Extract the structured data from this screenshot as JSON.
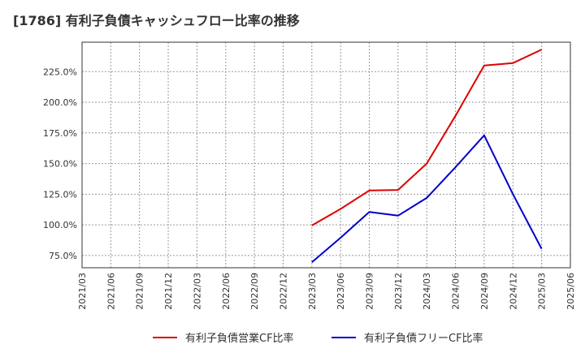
{
  "chart_data": {
    "type": "line",
    "title": "[1786]  有利子負債キャッシュフロー比率の推移",
    "xlabel": "",
    "ylabel": "",
    "x": [
      "2021/03",
      "2021/06",
      "2021/09",
      "2021/12",
      "2022/03",
      "2022/06",
      "2022/09",
      "2022/12",
      "2023/03",
      "2023/06",
      "2023/09",
      "2023/12",
      "2024/03",
      "2024/06",
      "2024/09",
      "2024/12",
      "2025/03",
      "2025/06"
    ],
    "ylim": [
      65,
      249
    ],
    "yticks": [
      75,
      100,
      125,
      150,
      175,
      200,
      225
    ],
    "ytick_labels": [
      "75.0%",
      "100.0%",
      "125.0%",
      "150.0%",
      "175.0%",
      "200.0%",
      "225.0%"
    ],
    "grid": true,
    "legend_position": "bottom",
    "series": [
      {
        "name": "有利子負債営業CF比率",
        "color": "#dd0000",
        "values": [
          null,
          null,
          null,
          null,
          null,
          null,
          null,
          null,
          99.5,
          113,
          128,
          128.5,
          150,
          189,
          230,
          232,
          243,
          null
        ]
      },
      {
        "name": "有利子負債フリーCF比率",
        "color": "#0000cc",
        "values": [
          null,
          null,
          null,
          null,
          null,
          null,
          null,
          null,
          69.5,
          89.5,
          110.5,
          107.5,
          122,
          147,
          173,
          125,
          80.5,
          null
        ]
      }
    ]
  }
}
